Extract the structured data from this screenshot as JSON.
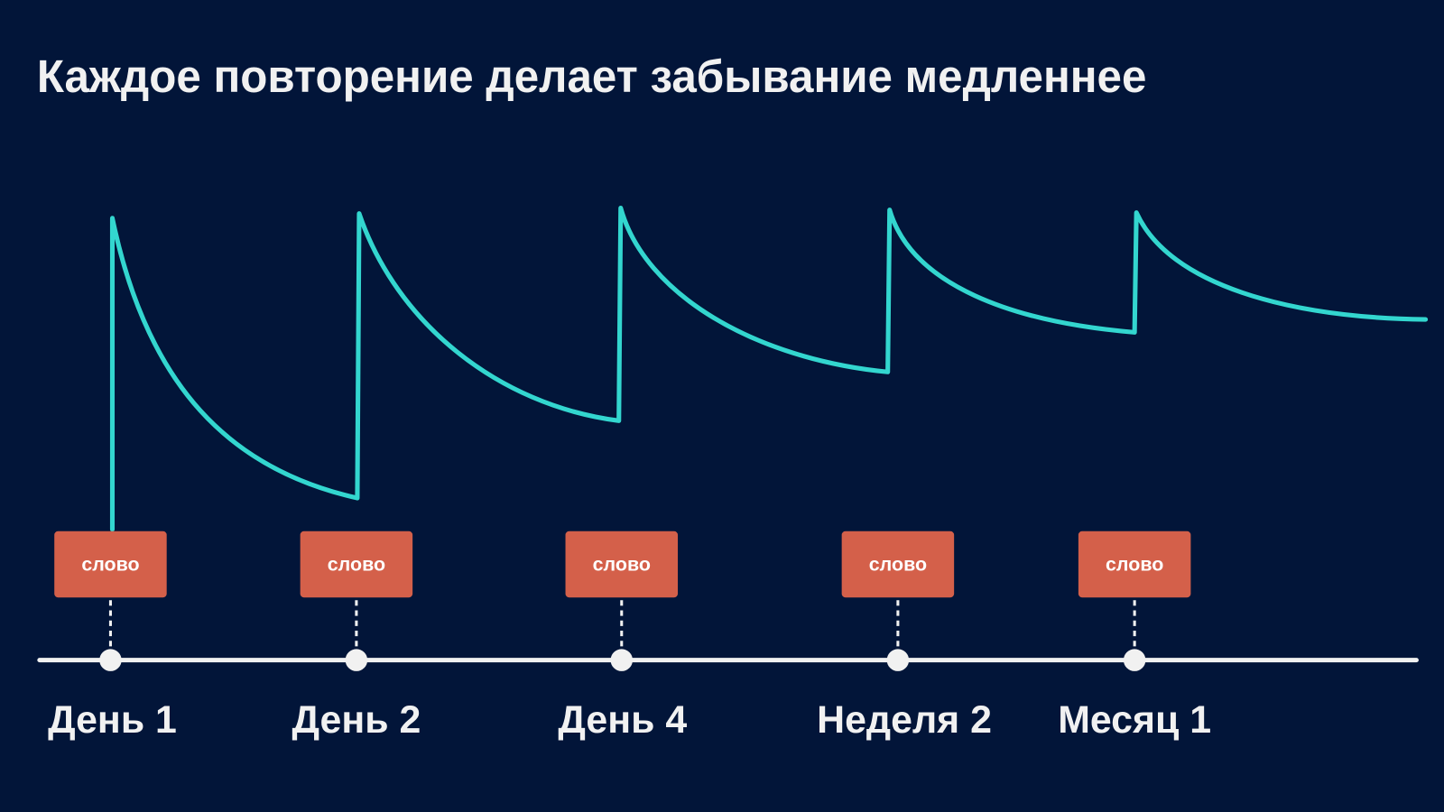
{
  "title": "Каждое повторение делает забывание медленнее",
  "reviews": [
    {
      "word": "слово",
      "time": "День 1"
    },
    {
      "word": "слово",
      "time": "День 2"
    },
    {
      "word": "слово",
      "time": "День 4"
    },
    {
      "word": "слово",
      "time": "Неделя 2"
    },
    {
      "word": "слово",
      "time": "Месяц 1"
    }
  ]
}
